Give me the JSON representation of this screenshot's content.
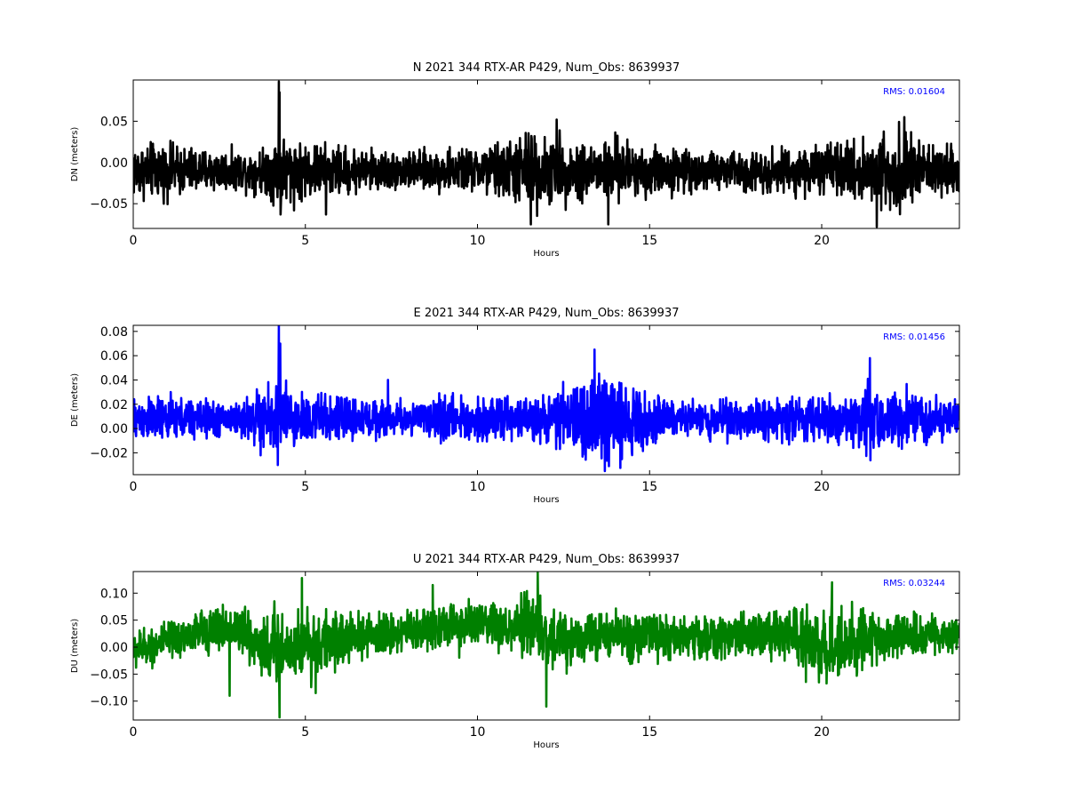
{
  "chart_data": [
    {
      "type": "line",
      "title": "N 2021 344 RTX-AR  P429, Num_Obs: 8639937",
      "xlabel": "Hours",
      "ylabel": "DN (meters)",
      "xlim": [
        0,
        24
      ],
      "ylim": [
        -0.08,
        0.1
      ],
      "xticks": [
        0,
        5,
        10,
        15,
        20
      ],
      "yticks": [
        -0.05,
        0.0,
        0.05
      ],
      "ytick_labels": [
        "−0.05",
        "0.00",
        "0.05"
      ],
      "annotation": "RMS:  0.01604",
      "color": "#000000",
      "baseline": -0.01,
      "envelope": [
        [
          0,
          0.03
        ],
        [
          1,
          0.028
        ],
        [
          2,
          0.024
        ],
        [
          3,
          0.02
        ],
        [
          3.8,
          0.024
        ],
        [
          4.2,
          0.04
        ],
        [
          5,
          0.03
        ],
        [
          6,
          0.026
        ],
        [
          7,
          0.022
        ],
        [
          8,
          0.02
        ],
        [
          9,
          0.022
        ],
        [
          10,
          0.024
        ],
        [
          11,
          0.034
        ],
        [
          11.5,
          0.045
        ],
        [
          12,
          0.036
        ],
        [
          13,
          0.032
        ],
        [
          14,
          0.034
        ],
        [
          15,
          0.028
        ],
        [
          16,
          0.022
        ],
        [
          17,
          0.02
        ],
        [
          18,
          0.022
        ],
        [
          19,
          0.024
        ],
        [
          20,
          0.026
        ],
        [
          21,
          0.03
        ],
        [
          21.7,
          0.045
        ],
        [
          22.5,
          0.038
        ],
        [
          23,
          0.028
        ],
        [
          24,
          0.024
        ]
      ],
      "spikes": [
        [
          4.23,
          0.098
        ],
        [
          4.25,
          0.085
        ],
        [
          4.28,
          -0.063
        ],
        [
          11.55,
          -0.075
        ],
        [
          13.8,
          -0.075
        ],
        [
          21.6,
          -0.078
        ],
        [
          22.4,
          0.055
        ],
        [
          12.3,
          0.052
        ],
        [
          5.6,
          -0.063
        ]
      ]
    },
    {
      "type": "line",
      "title": "E 2021 344 RTX-AR  P429, Num_Obs: 8639937",
      "xlabel": "Hours",
      "ylabel": "DE (meters)",
      "xlim": [
        0,
        24
      ],
      "ylim": [
        -0.038,
        0.085
      ],
      "xticks": [
        0,
        5,
        10,
        15,
        20
      ],
      "yticks": [
        -0.02,
        0.0,
        0.02,
        0.04,
        0.06,
        0.08
      ],
      "ytick_labels": [
        "−0.02",
        "0.00",
        "0.02",
        "0.04",
        "0.06",
        "0.08"
      ],
      "annotation": "RMS:  0.01456",
      "color": "#0000ff",
      "baseline": 0.008,
      "envelope": [
        [
          0,
          0.016
        ],
        [
          1,
          0.016
        ],
        [
          2,
          0.014
        ],
        [
          3,
          0.012
        ],
        [
          3.6,
          0.02
        ],
        [
          4.2,
          0.026
        ],
        [
          5,
          0.02
        ],
        [
          6,
          0.016
        ],
        [
          7,
          0.014
        ],
        [
          8,
          0.012
        ],
        [
          9,
          0.016
        ],
        [
          10,
          0.016
        ],
        [
          11,
          0.014
        ],
        [
          12,
          0.016
        ],
        [
          13,
          0.028
        ],
        [
          13.5,
          0.036
        ],
        [
          14,
          0.03
        ],
        [
          15,
          0.018
        ],
        [
          16,
          0.012
        ],
        [
          17,
          0.014
        ],
        [
          18,
          0.014
        ],
        [
          19,
          0.016
        ],
        [
          20,
          0.016
        ],
        [
          21,
          0.02
        ],
        [
          21.5,
          0.03
        ],
        [
          22,
          0.022
        ],
        [
          23,
          0.018
        ],
        [
          24,
          0.016
        ]
      ],
      "spikes": [
        [
          4.23,
          0.085
        ],
        [
          4.27,
          0.07
        ],
        [
          4.2,
          -0.03
        ],
        [
          13.4,
          0.065
        ],
        [
          13.7,
          -0.035
        ],
        [
          21.4,
          0.058
        ],
        [
          7.4,
          0.04
        ],
        [
          3.7,
          -0.022
        ]
      ]
    },
    {
      "type": "line",
      "title": "U 2021 344 RTX-AR  P429, Num_Obs: 8639937",
      "xlabel": "Hours",
      "ylabel": "DU (meters)",
      "xlim": [
        0,
        24
      ],
      "ylim": [
        -0.135,
        0.14
      ],
      "xticks": [
        0,
        5,
        10,
        15,
        20
      ],
      "yticks": [
        -0.1,
        -0.05,
        0.0,
        0.05,
        0.1
      ],
      "ytick_labels": [
        "−0.10",
        "−0.05",
        "0.00",
        "0.05",
        "0.10"
      ],
      "annotation": "RMS:  0.03244",
      "color": "#008000",
      "baseline_profile": [
        [
          0,
          -0.005
        ],
        [
          1,
          0.01
        ],
        [
          2,
          0.03
        ],
        [
          3,
          0.035
        ],
        [
          4,
          -0.005
        ],
        [
          5,
          0.005
        ],
        [
          6,
          0.015
        ],
        [
          7,
          0.02
        ],
        [
          8,
          0.03
        ],
        [
          9,
          0.04
        ],
        [
          10,
          0.04
        ],
        [
          11,
          0.03
        ],
        [
          11.7,
          0.045
        ],
        [
          12,
          0.01
        ],
        [
          13,
          0.02
        ],
        [
          14,
          0.02
        ],
        [
          15,
          0.02
        ],
        [
          16,
          0.02
        ],
        [
          17,
          0.015
        ],
        [
          18,
          0.03
        ],
        [
          19,
          0.02
        ],
        [
          20,
          0.0
        ],
        [
          21,
          0.01
        ],
        [
          22,
          0.02
        ],
        [
          23,
          0.02
        ],
        [
          24,
          0.02
        ]
      ],
      "envelope": [
        [
          0,
          0.03
        ],
        [
          1,
          0.032
        ],
        [
          2,
          0.035
        ],
        [
          3,
          0.04
        ],
        [
          4,
          0.06
        ],
        [
          5,
          0.06
        ],
        [
          6,
          0.04
        ],
        [
          7,
          0.035
        ],
        [
          8,
          0.035
        ],
        [
          9,
          0.04
        ],
        [
          10,
          0.04
        ],
        [
          11,
          0.04
        ],
        [
          11.7,
          0.07
        ],
        [
          12,
          0.05
        ],
        [
          13,
          0.04
        ],
        [
          14,
          0.04
        ],
        [
          15,
          0.04
        ],
        [
          16,
          0.035
        ],
        [
          17,
          0.035
        ],
        [
          18,
          0.04
        ],
        [
          19,
          0.04
        ],
        [
          20,
          0.07
        ],
        [
          21,
          0.05
        ],
        [
          22,
          0.035
        ],
        [
          23,
          0.035
        ],
        [
          24,
          0.03
        ]
      ],
      "spikes": [
        [
          4.25,
          -0.13
        ],
        [
          4.1,
          0.085
        ],
        [
          4.9,
          0.128
        ],
        [
          11.75,
          0.138
        ],
        [
          12.0,
          -0.11
        ],
        [
          2.8,
          -0.09
        ],
        [
          20.3,
          0.12
        ],
        [
          5.3,
          -0.085
        ],
        [
          8.7,
          0.115
        ]
      ]
    }
  ]
}
